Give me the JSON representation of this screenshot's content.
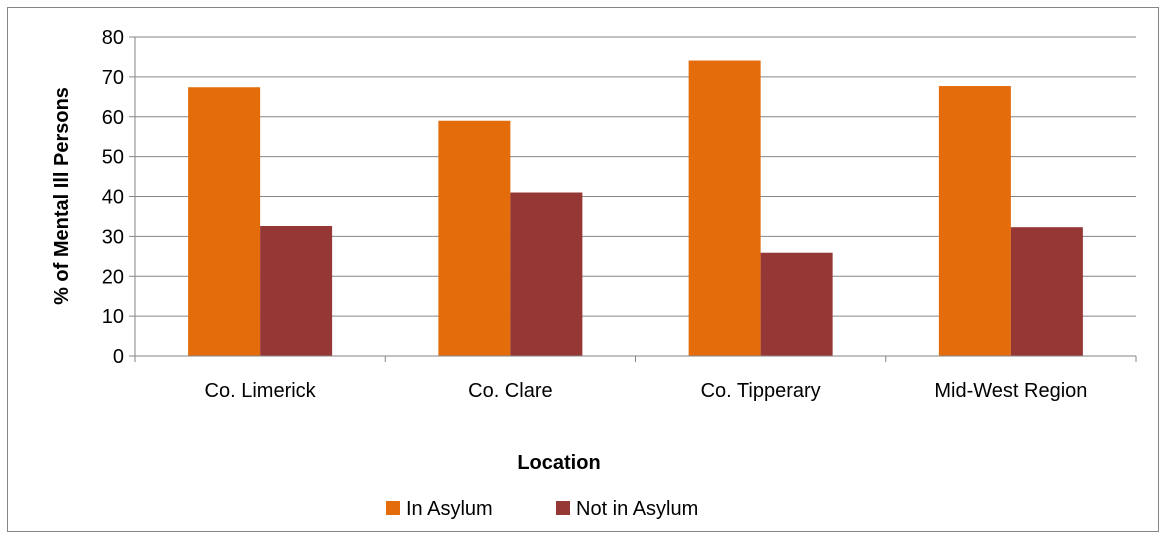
{
  "chart_data": {
    "type": "bar",
    "title": "",
    "xlabel": "Location",
    "ylabel": "% of Mental Ill Persons",
    "categories": [
      "Co. Limerick",
      "Co. Clare",
      "Co. Tipperary",
      "Mid-West Region"
    ],
    "series": [
      {
        "name": "In Asylum",
        "color": "#E46C0A",
        "values": [
          67.4,
          59.0,
          74.1,
          67.7
        ]
      },
      {
        "name": "Not in Asylum",
        "color": "#953735",
        "values": [
          32.6,
          41.0,
          25.9,
          32.3
        ]
      }
    ],
    "ylim": [
      0,
      80
    ],
    "yticks": [
      0,
      10,
      20,
      30,
      40,
      50,
      60,
      70,
      80
    ],
    "grid": true,
    "legend": "bottom"
  }
}
